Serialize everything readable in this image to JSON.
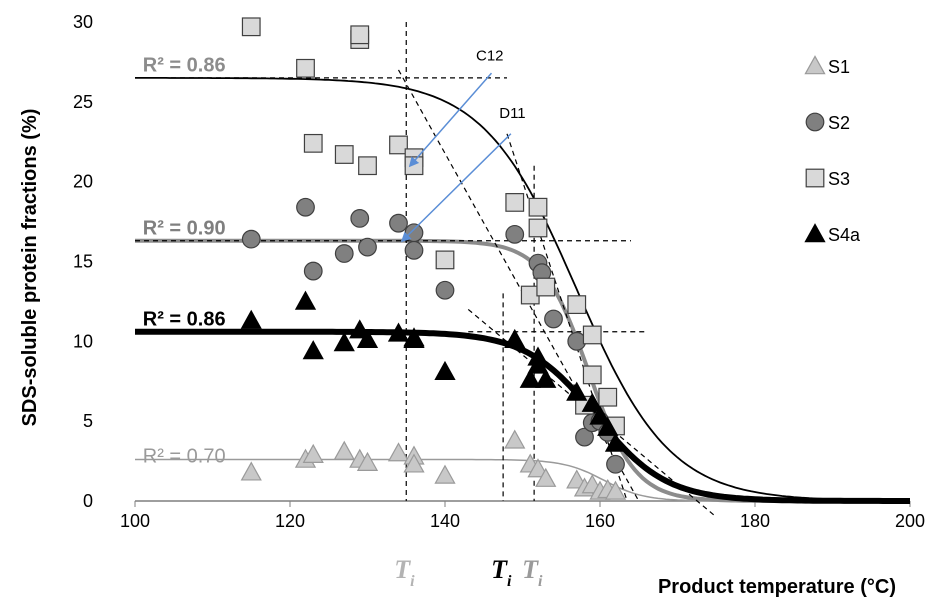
{
  "chart_data": {
    "type": "scatter",
    "xlabel": "Product temperature (°C)",
    "ylabel": "SDS-soluble protein fractions (%)",
    "xlim": [
      100,
      200
    ],
    "ylim": [
      0,
      30
    ],
    "x_ticks": [
      100,
      120,
      140,
      160,
      180,
      200
    ],
    "y_ticks": [
      0,
      5,
      10,
      15,
      20,
      25,
      30
    ],
    "grid": false,
    "legend_position": "right",
    "series": [
      {
        "name": "S1",
        "marker": "triangle",
        "fill": "#c8c8c8",
        "stroke": "#9a9a9a",
        "x": [
          115,
          122,
          123,
          127,
          129,
          130,
          134,
          136,
          136,
          140,
          149,
          151,
          152,
          153,
          157,
          158,
          159,
          160,
          161,
          162
        ],
        "y": [
          1.8,
          2.6,
          2.9,
          3.1,
          2.6,
          2.4,
          3.0,
          2.8,
          2.3,
          1.6,
          3.8,
          2.3,
          2.0,
          1.4,
          1.3,
          0.8,
          1.0,
          0.6,
          0.7,
          0.6
        ],
        "fit": {
          "R2_label": "R² = 0.70",
          "max": 2.6,
          "mid": 160.5,
          "scale": 2.6,
          "color": "#9a9a9a",
          "width": 1.5
        }
      },
      {
        "name": "S2",
        "marker": "circle",
        "fill": "#808080",
        "stroke": "#404040",
        "x": [
          115,
          122,
          123,
          127,
          129,
          130,
          134,
          136,
          136,
          140,
          149,
          152,
          152.5,
          154,
          157,
          158,
          159,
          160,
          161,
          162
        ],
        "y": [
          16.4,
          18.4,
          14.4,
          15.5,
          17.7,
          15.9,
          17.4,
          16.8,
          15.7,
          13.2,
          16.7,
          14.9,
          14.3,
          11.4,
          10.0,
          4.0,
          4.9,
          5.0,
          4.3,
          2.3
        ],
        "fit": {
          "R2_label": "R² = 0.90",
          "max": 16.3,
          "mid": 158.5,
          "scale": 3.0,
          "color": "#8c8c8c",
          "width": 4
        }
      },
      {
        "name": "S3",
        "marker": "square",
        "fill": "#d9d9d9",
        "stroke": "#404040",
        "x": [
          115,
          122,
          123,
          127,
          129,
          129,
          130,
          134,
          136,
          136,
          140,
          149,
          151,
          152,
          152,
          153,
          157,
          158,
          159,
          159,
          161,
          162
        ],
        "y": [
          29.7,
          27.1,
          22.4,
          21.7,
          28.9,
          29.2,
          21.0,
          22.3,
          21.5,
          21.0,
          15.1,
          18.7,
          12.9,
          18.4,
          17.1,
          13.4,
          12.3,
          6.0,
          10.4,
          7.9,
          6.5,
          4.7
        ],
        "fit": {
          "R2_label": "R² = 0.86",
          "max": 26.5,
          "mid": 157,
          "scale": 6.0,
          "color": "#000000",
          "width": 1.8
        }
      },
      {
        "name": "S4a",
        "marker": "triangle",
        "fill": "#000000",
        "stroke": "#000000",
        "x": [
          115,
          122,
          123,
          127,
          129,
          130,
          134,
          136,
          136,
          140,
          149,
          151,
          152,
          152,
          153,
          157,
          159,
          160,
          161,
          162
        ],
        "y": [
          11.3,
          12.5,
          9.4,
          9.9,
          10.7,
          10.1,
          10.5,
          10.2,
          10.1,
          8.1,
          10.1,
          7.6,
          9.0,
          8.5,
          7.6,
          6.8,
          6.1,
          5.3,
          4.6,
          3.6
        ],
        "fit": {
          "R2_label": "R² = 0.86",
          "max": 10.6,
          "mid": 159.5,
          "scale": 4.5,
          "color": "#000000",
          "width": 6
        }
      }
    ],
    "annotations": {
      "C12": {
        "label": "C12",
        "target": [
          135.5,
          21.0
        ]
      },
      "D11": {
        "label": "D11",
        "target": [
          134.5,
          16.3
        ]
      }
    },
    "ti_markers": [
      {
        "label": "T",
        "sub": "i",
        "x": 135,
        "color": "#b3b3b3"
      },
      {
        "label": "T",
        "sub": "i",
        "x": 147.5,
        "color": "#000000"
      },
      {
        "label": "T",
        "sub": "i",
        "x": 151.5,
        "color": "#9a9a9a"
      }
    ],
    "colors": {
      "arrow": "#5b8ed6"
    }
  }
}
